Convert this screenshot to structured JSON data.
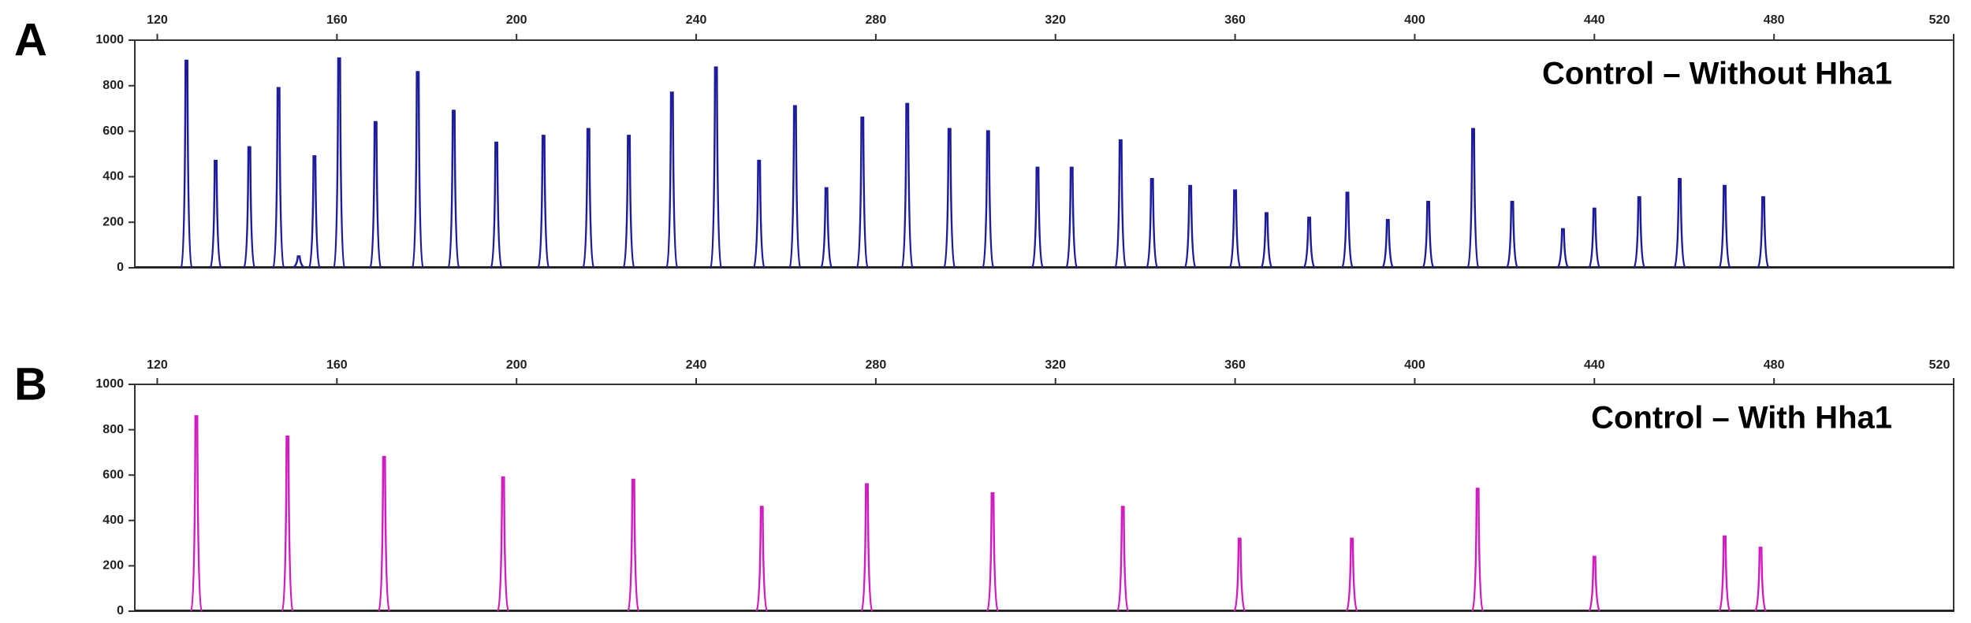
{
  "chart_data": [
    {
      "type": "peaks",
      "label": "A",
      "annotation": "Control – Without Hha1",
      "color": "#1c1c9c",
      "x": [
        126.5,
        133,
        140.5,
        147,
        151.5,
        155,
        160.5,
        168.6,
        178,
        186,
        195.5,
        206,
        216,
        225,
        234.6,
        244.4,
        254,
        262,
        269,
        277,
        287,
        296.4,
        305,
        316,
        323.6,
        334.5,
        341.5,
        350,
        360,
        367,
        376.5,
        385,
        394,
        403,
        413,
        421.7,
        433,
        440,
        450,
        459,
        469,
        477.6
      ],
      "values": [
        910,
        470,
        530,
        790,
        50,
        490,
        920,
        640,
        860,
        690,
        550,
        580,
        610,
        580,
        770,
        880,
        470,
        710,
        350,
        660,
        720,
        610,
        600,
        440,
        440,
        560,
        390,
        360,
        340,
        240,
        220,
        330,
        210,
        290,
        610,
        290,
        170,
        260,
        310,
        390,
        360,
        310
      ],
      "xlim": [
        115,
        520
      ],
      "ylim": [
        0,
        1000
      ],
      "xticks": [
        120,
        160,
        200,
        240,
        280,
        320,
        360,
        400,
        440,
        480,
        520
      ],
      "yticks": [
        0,
        200,
        400,
        600,
        800,
        1000
      ]
    },
    {
      "type": "peaks",
      "label": "B",
      "annotation": "Control – With Hha1",
      "color": "#d01cc0",
      "x": [
        128.7,
        149,
        170.5,
        197,
        226,
        254.6,
        278,
        306,
        335,
        361,
        386,
        414,
        440,
        469,
        477
      ],
      "values": [
        860,
        770,
        680,
        590,
        580,
        460,
        560,
        520,
        460,
        320,
        320,
        540,
        240,
        330,
        280
      ],
      "xlim": [
        115,
        520
      ],
      "ylim": [
        0,
        1000
      ],
      "xticks": [
        120,
        160,
        200,
        240,
        280,
        320,
        360,
        400,
        440,
        480,
        520
      ],
      "yticks": [
        0,
        200,
        400,
        600,
        800,
        1000
      ]
    }
  ]
}
